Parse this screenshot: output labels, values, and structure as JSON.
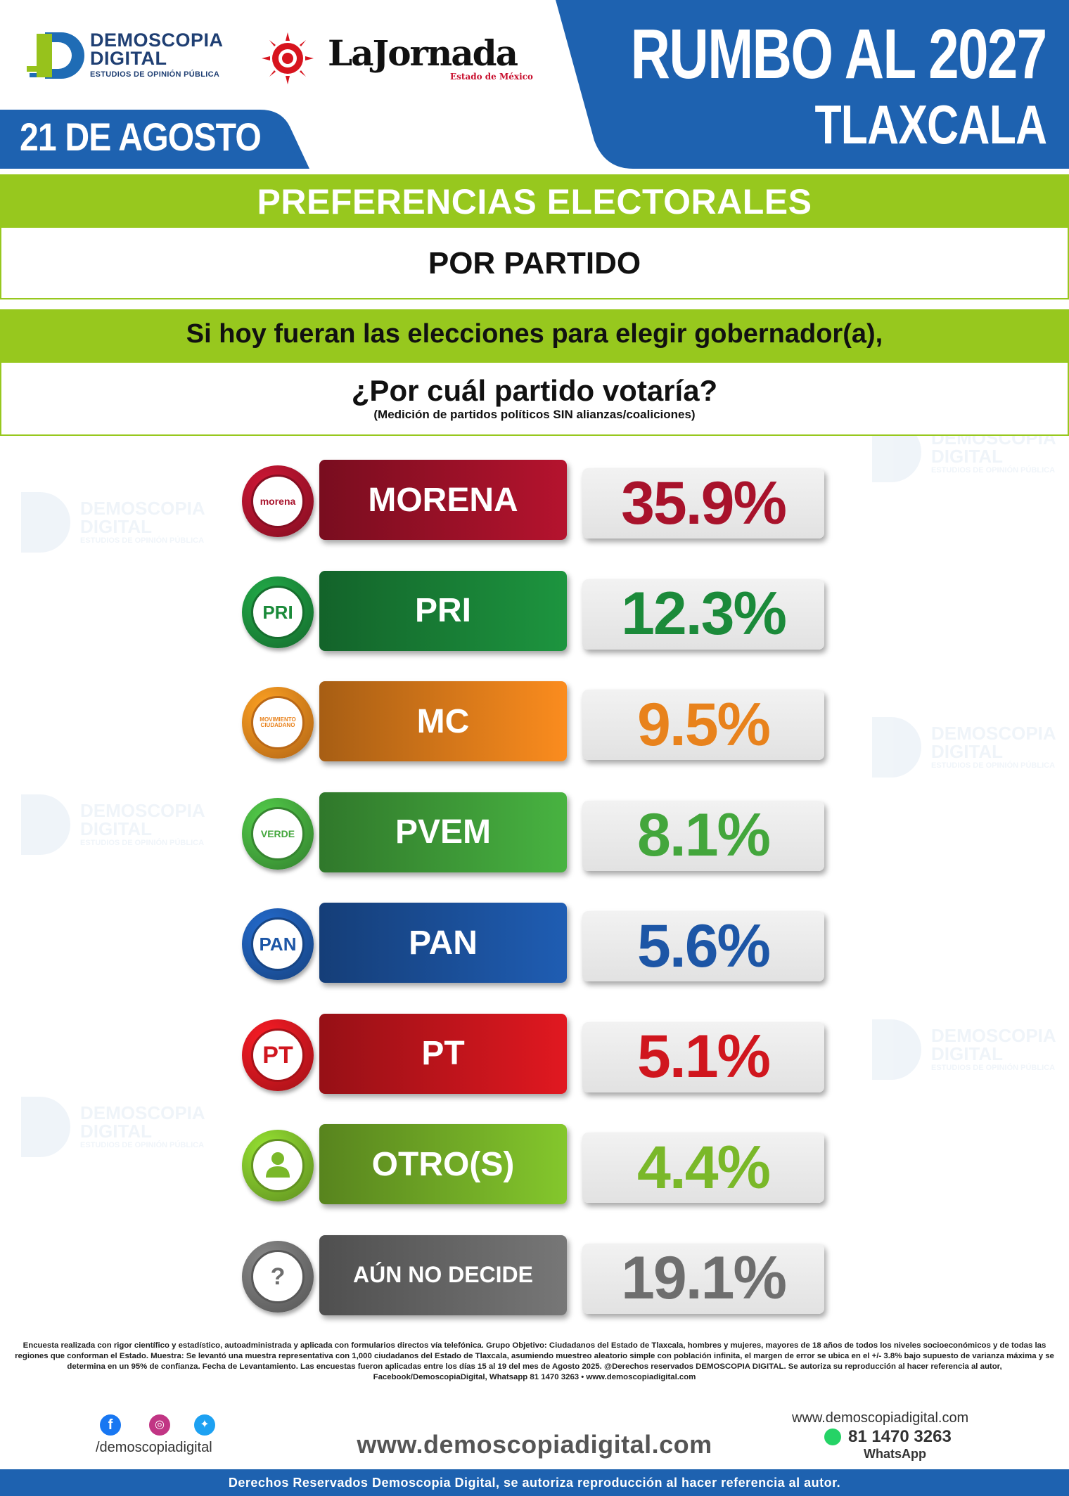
{
  "header": {
    "brand_name_line1": "DEMOSCOPIA",
    "brand_name_line2": "DIGITAL",
    "brand_sub": "ESTUDIOS DE OPINIÓN PÚBLICA",
    "partner_name": "LaJornada",
    "partner_sub": "Estado de México",
    "date": "21 DE AGOSTO",
    "title": "RUMBO AL 2027",
    "state": "TLAXCALA",
    "colors": {
      "blue": "#1e62b0",
      "green": "#97c81e"
    }
  },
  "banners": {
    "section": "PREFERENCIAS ELECTORALES",
    "subsection": "POR PARTIDO",
    "question_line1": "Si hoy fueran las elecciones para elegir gobernador(a),",
    "question_line2": "¿Por cuál partido votaría?",
    "question_note": "(Medición de partidos políticos SIN alianzas/coaliciones)"
  },
  "chart_data": {
    "type": "bar",
    "categories": [
      "MORENA",
      "PRI",
      "MC",
      "PVEM",
      "PAN",
      "PT",
      "OTRO(S)",
      "AÚN NO DECIDE"
    ],
    "values": [
      35.9,
      12.3,
      9.5,
      8.1,
      5.6,
      5.1,
      4.4,
      19.1
    ],
    "value_labels": [
      "35.9%",
      "12.3%",
      "9.5%",
      "8.1%",
      "5.6%",
      "5.1%",
      "4.4%",
      "19.1%"
    ],
    "logos": [
      "morena",
      "PRI",
      "MOVIMIENTO CIUDADANO",
      "VERDE",
      "PAN",
      "PT",
      "user-icon",
      "?"
    ],
    "colors": [
      "#a8122b",
      "#1b8a3a",
      "#e8821c",
      "#43a63c",
      "#1d56a6",
      "#d0161e",
      "#7ab829",
      "#6e6e6e"
    ],
    "title": "PREFERENCIAS ELECTORALES",
    "xlabel": "",
    "ylabel": ""
  },
  "footer": {
    "methodology": "Encuesta realizada con rigor científico y estadístico, autoadministrada y aplicada con formularios directos vía telefónica. Grupo Objetivo: Ciudadanos del Estado de Tlaxcala, hombres y mujeres, mayores de 18 años de todos los niveles socioeconómicos y de todas las regiones que conforman el Estado. Muestra: Se levantó una muestra representativa con 1,000 ciudadanos del Estado de Tlaxcala, asumiendo muestreo aleatorio simple con población infinita, el margen de error se ubica en el +/- 3.8% bajo supuesto de varianza máxima y se determina en un 95% de confianza. Fecha de Levantamiento. Las encuestas fueron aplicadas entre los días 15 al 19 del mes de Agosto 2025. @Derechos reservados DEMOSCOPIA DIGITAL. Se autoriza su reproducción al hacer referencia al autor, Facebook/DemoscopiaDigital, Whatsapp 81 1470 3263 • www.demoscopiadigital.com",
    "handle": "/demoscopiadigital",
    "website": "www.demoscopiadigital.com",
    "website_small": "www.demoscopiadigital.com",
    "phone": "81 1470 3263",
    "whatsapp_label": "WhatsApp",
    "rights": "Derechos Reservados Demoscopia Digital, se autoriza reproducción al hacer referencia al autor."
  }
}
